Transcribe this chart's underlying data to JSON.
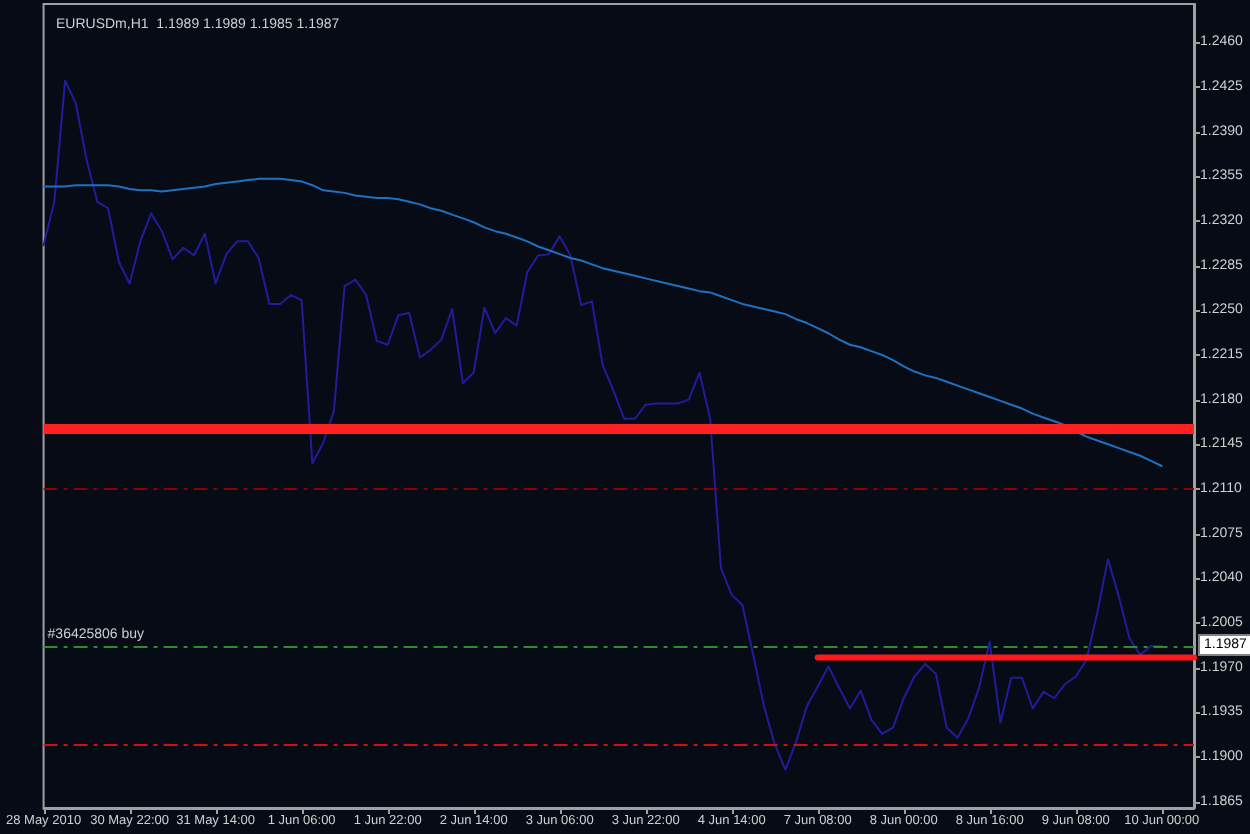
{
  "chart_data": {
    "type": "line",
    "title": "EURUSDm,H1  1.1989 1.1989 1.1985 1.1987",
    "categories": [
      "28 May 2010",
      null,
      null,
      null,
      null,
      null,
      null,
      null,
      "30 May 22:00",
      null,
      null,
      null,
      null,
      null,
      null,
      null,
      "31 May 14:00",
      null,
      null,
      null,
      null,
      null,
      null,
      null,
      "1 Jun 06:00",
      null,
      null,
      null,
      null,
      null,
      null,
      null,
      "1 Jun 22:00",
      null,
      null,
      null,
      null,
      null,
      null,
      null,
      "2 Jun 14:00",
      null,
      null,
      null,
      null,
      null,
      null,
      null,
      "3 Jun 06:00",
      null,
      null,
      null,
      null,
      null,
      null,
      null,
      "3 Jun 22:00",
      null,
      null,
      null,
      null,
      null,
      null,
      null,
      "4 Jun 14:00",
      null,
      null,
      null,
      null,
      null,
      null,
      null,
      "7 Jun 08:00",
      null,
      null,
      null,
      null,
      null,
      null,
      null,
      "8 Jun 00:00",
      null,
      null,
      null,
      null,
      null,
      null,
      null,
      "8 Jun 16:00",
      null,
      null,
      null,
      null,
      null,
      null,
      null,
      "9 Jun 08:00",
      null,
      null,
      null,
      null,
      null,
      null,
      null,
      "10 Jun 00:00",
      null,
      null,
      null
    ],
    "series": [
      {
        "color": "#231c9a",
        "values": [
          1.2301,
          1.2335,
          1.243,
          1.2412,
          1.2368,
          1.2335,
          1.233,
          1.2288,
          1.2271,
          1.2304,
          1.2326,
          1.2312,
          1.229,
          1.2299,
          1.2293,
          1.231,
          1.2271,
          1.2294,
          1.2304,
          1.2304,
          1.2291,
          1.2255,
          1.2255,
          1.2262,
          1.2258,
          1.213,
          1.2146,
          1.2171,
          1.2269,
          1.2274,
          1.2262,
          1.2226,
          1.2223,
          1.2246,
          1.2248,
          1.2213,
          1.2219,
          1.2227,
          1.2251,
          1.2193,
          1.2201,
          1.2252,
          1.2232,
          1.2244,
          1.2238,
          1.228,
          1.2293,
          1.2294,
          1.2308,
          1.2293,
          1.2254,
          1.2257,
          1.2207,
          1.2187,
          1.2165,
          1.2165,
          1.2176,
          1.2177,
          1.2177,
          1.2177,
          1.218,
          1.2201,
          1.2165,
          1.2048,
          1.2027,
          1.2019,
          1.198,
          1.194,
          1.191,
          1.189,
          1.1912,
          1.194,
          1.1955,
          1.1971,
          1.1954,
          1.1938,
          1.1952,
          1.1929,
          1.1918,
          1.1923,
          1.1946,
          1.1963,
          1.1973,
          1.1965,
          1.1923,
          1.1915,
          1.193,
          1.1954,
          1.199,
          1.1927,
          1.1962,
          1.1962,
          1.1938,
          1.1951,
          1.1946,
          1.1957,
          1.1963,
          1.1976,
          1.2013,
          1.2055,
          1.2026,
          1.1993,
          1.198,
          1.1987,
          1.1987,
          null,
          null,
          null
        ]
      },
      {
        "color": "#2070c0",
        "values": [
          1.2347,
          1.2347,
          1.2347,
          1.2348,
          1.2348,
          1.2348,
          1.2348,
          1.2347,
          1.2345,
          1.2344,
          1.2344,
          1.2343,
          1.2344,
          1.2345,
          1.2346,
          1.2347,
          1.2349,
          1.235,
          1.2351,
          1.2352,
          1.2353,
          1.2353,
          1.2353,
          1.2352,
          1.2351,
          1.2348,
          1.2344,
          1.2343,
          1.2342,
          1.234,
          1.2339,
          1.2338,
          1.2338,
          1.2337,
          1.2335,
          1.2333,
          1.233,
          1.2328,
          1.2325,
          1.2322,
          1.2319,
          1.2315,
          1.2312,
          1.231,
          1.2307,
          1.2304,
          1.23,
          1.2297,
          1.2294,
          1.2291,
          1.2289,
          1.2286,
          1.2283,
          1.2281,
          1.2279,
          1.2277,
          1.2275,
          1.2273,
          1.2271,
          1.2269,
          1.2267,
          1.2265,
          1.2264,
          1.2261,
          1.2258,
          1.2255,
          1.2253,
          1.2251,
          1.2249,
          1.2247,
          1.2243,
          1.224,
          1.2236,
          1.2232,
          1.2227,
          1.2223,
          1.2221,
          1.2218,
          1.2215,
          1.2211,
          1.2206,
          1.2202,
          1.2199,
          1.2197,
          1.2194,
          1.2191,
          1.2188,
          1.2185,
          1.2182,
          1.2179,
          1.2176,
          1.2173,
          1.2169,
          1.2166,
          1.2163,
          1.216,
          1.2155,
          1.2151,
          1.2148,
          1.2145,
          1.2142,
          1.2139,
          1.2136,
          1.2132,
          1.2128,
          null,
          null,
          null
        ]
      },
      {
        "color": "#ff1a1a",
        "values": [
          null,
          null,
          null,
          null,
          null,
          null,
          null,
          null,
          null,
          null,
          null,
          null,
          null,
          null,
          null,
          null,
          null,
          null,
          null,
          null,
          null,
          null,
          null,
          null,
          null,
          null,
          null,
          null,
          null,
          null,
          null,
          null,
          null,
          null,
          null,
          null,
          null,
          null,
          null,
          null,
          null,
          null,
          null,
          null,
          null,
          null,
          null,
          null,
          null,
          null,
          null,
          null,
          null,
          null,
          null,
          null,
          null,
          null,
          null,
          null,
          null,
          null,
          null,
          null,
          null,
          null,
          null,
          null,
          null,
          null,
          null,
          null,
          1.1978,
          1.1978,
          1.1978,
          1.1978,
          1.1978,
          1.1978,
          1.1978,
          1.1978,
          1.1978,
          1.1978,
          1.1978,
          1.1978,
          1.1978,
          1.1978,
          1.1978,
          1.1978,
          1.1978,
          1.1978,
          1.1978,
          1.1978,
          1.1978,
          1.1978,
          1.1978,
          1.1978,
          1.1978,
          1.1978,
          1.1978,
          1.1978,
          1.1978,
          1.1978,
          1.1978,
          1.1978,
          1.1978,
          1.1978,
          1.1978,
          1.1978
        ]
      }
    ],
    "ylim": [
      1.186,
      1.249
    ],
    "yticks": [
      1.1865,
      {
        "value": 1.19,
        "label": "1.1900"
      },
      1.1935,
      {
        "value": 1.197,
        "label": "1.1970"
      },
      1.2005,
      {
        "value": 1.204,
        "label": "1.2040"
      },
      1.2075,
      {
        "value": 1.211,
        "label": "1.2110"
      },
      1.2145,
      {
        "value": 1.218,
        "label": "1.2180"
      },
      1.2215,
      {
        "value": 1.225,
        "label": "1.2250"
      },
      1.2285,
      {
        "value": 1.232,
        "label": "1.2320"
      },
      1.2355,
      {
        "value": 1.239,
        "label": "1.2390"
      },
      1.2425,
      {
        "value": 1.246,
        "label": "1.2460"
      }
    ],
    "ref_lines": [
      {
        "axis": "y",
        "value": 1.2157,
        "color": "#ff2020",
        "line_style": "solid"
      },
      {
        "axis": "y",
        "value": 1.211,
        "color": "#8b0000",
        "line_style": "dashed"
      },
      {
        "axis": "y",
        "value": 1.1987,
        "label": "#36425806 buy",
        "color": "#2e8b2e",
        "line_style": "dashed"
      },
      {
        "axis": "y",
        "value": 1.191,
        "color": "#d01010",
        "line_style": "dashed"
      }
    ],
    "annotations": [
      {
        "text": "1.1987",
        "y": 1.1987
      }
    ]
  }
}
